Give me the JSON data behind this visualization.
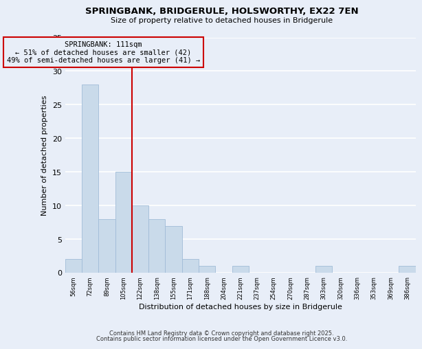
{
  "title": "SPRINGBANK, BRIDGERULE, HOLSWORTHY, EX22 7EN",
  "subtitle": "Size of property relative to detached houses in Bridgerule",
  "xlabel": "Distribution of detached houses by size in Bridgerule",
  "ylabel": "Number of detached properties",
  "footer_lines": [
    "Contains HM Land Registry data © Crown copyright and database right 2025.",
    "Contains public sector information licensed under the Open Government Licence v3.0."
  ],
  "bin_labels": [
    "56sqm",
    "72sqm",
    "89sqm",
    "105sqm",
    "122sqm",
    "138sqm",
    "155sqm",
    "171sqm",
    "188sqm",
    "204sqm",
    "221sqm",
    "237sqm",
    "254sqm",
    "270sqm",
    "287sqm",
    "303sqm",
    "320sqm",
    "336sqm",
    "353sqm",
    "369sqm",
    "386sqm"
  ],
  "bar_values": [
    2,
    28,
    8,
    15,
    10,
    8,
    7,
    2,
    1,
    0,
    1,
    0,
    0,
    0,
    0,
    1,
    0,
    0,
    0,
    0,
    1
  ],
  "bar_color": "#c9daea",
  "bar_edge_color": "#a0bcd8",
  "background_color": "#e8eef8",
  "grid_color": "#ffffff",
  "annotation_text_line1": "SPRINGBANK: 111sqm",
  "annotation_text_line2": "← 51% of detached houses are smaller (42)",
  "annotation_text_line3": "49% of semi-detached houses are larger (41) →",
  "vline_color": "#cc0000",
  "annotation_box_edge_color": "#cc0000",
  "ylim": [
    0,
    35
  ],
  "yticks": [
    0,
    5,
    10,
    15,
    20,
    25,
    30,
    35
  ]
}
